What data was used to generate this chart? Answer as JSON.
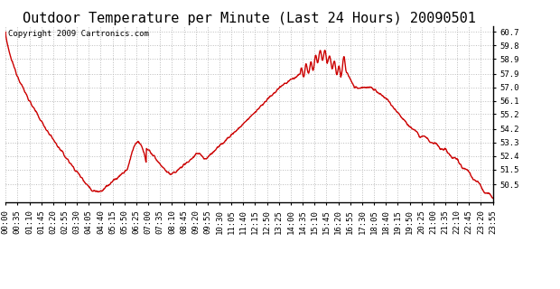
{
  "title": "Outdoor Temperature per Minute (Last 24 Hours) 20090501",
  "copyright_text": "Copyright 2009 Cartronics.com",
  "line_color": "#cc0000",
  "background_color": "#ffffff",
  "plot_bg_color": "#ffffff",
  "grid_color": "#bbbbbb",
  "grid_style": "--",
  "ylim": [
    49.3,
    61.1
  ],
  "yticks": [
    50.5,
    51.5,
    52.4,
    53.3,
    54.2,
    55.2,
    56.1,
    57.0,
    57.9,
    58.9,
    59.8,
    60.7
  ],
  "xtick_labels": [
    "00:00",
    "00:35",
    "01:10",
    "01:45",
    "02:20",
    "02:55",
    "03:30",
    "04:05",
    "04:40",
    "05:15",
    "05:50",
    "06:25",
    "07:00",
    "07:35",
    "08:10",
    "08:45",
    "09:20",
    "09:55",
    "10:30",
    "11:05",
    "11:40",
    "12:15",
    "12:50",
    "13:25",
    "14:00",
    "14:35",
    "15:10",
    "15:45",
    "16:20",
    "16:55",
    "17:30",
    "18:05",
    "18:40",
    "19:15",
    "19:50",
    "20:25",
    "21:00",
    "21:35",
    "22:10",
    "22:45",
    "23:20",
    "23:55"
  ],
  "line_width": 1.0,
  "title_fontsize": 11,
  "tick_fontsize": 6.5,
  "copyright_fontsize": 6.5
}
